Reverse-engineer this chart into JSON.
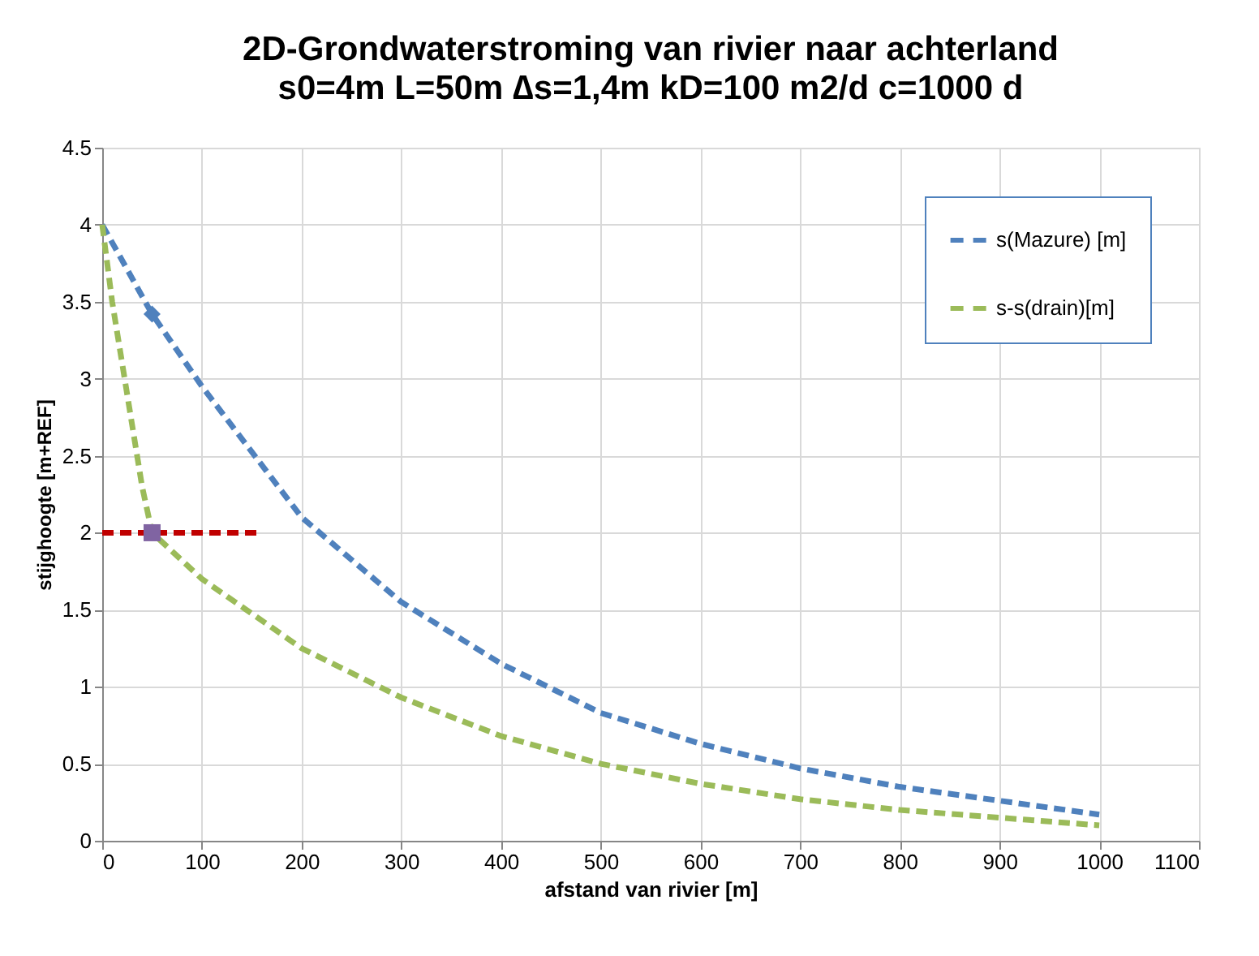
{
  "chart_data": {
    "type": "line",
    "title": "2D-Grondwaterstroming van rivier naar achterland",
    "subtitle": "s0=4m L=50m ∆s=1,4m kD=100 m2/d c=1000 d",
    "xlabel": "afstand van rivier [m]",
    "ylabel": "stijghoogte [m+REF]",
    "xlim": [
      0,
      1100
    ],
    "xticks": [
      0,
      100,
      200,
      300,
      400,
      500,
      600,
      700,
      800,
      900,
      1000,
      1100
    ],
    "ylim": [
      0,
      4.5
    ],
    "yticks": [
      0,
      0.5,
      1,
      1.5,
      2,
      2.5,
      3,
      3.5,
      4,
      4.5
    ],
    "grid": true,
    "legend": "top right",
    "series": [
      {
        "name": "s(Mazure) [m]",
        "color": "#4f81bd",
        "line_style": "dashed",
        "x": [
          0,
          50,
          100,
          200,
          300,
          400,
          500,
          600,
          700,
          800,
          900,
          1000
        ],
        "values": [
          4,
          3.42,
          2.95,
          2.1,
          1.55,
          1.15,
          0.83,
          0.63,
          0.47,
          0.35,
          0.26,
          0.17
        ]
      },
      {
        "name": "s-s(drain)[m]",
        "color": "#9bbb59",
        "line_style": "dashed",
        "x": [
          0,
          10,
          25,
          40,
          50,
          100,
          200,
          300,
          400,
          500,
          600,
          700,
          800,
          900,
          1000
        ],
        "values": [
          4,
          3.5,
          2.9,
          2.3,
          2.0,
          1.7,
          1.25,
          0.93,
          0.68,
          0.5,
          0.37,
          0.27,
          0.2,
          0.15,
          0.1
        ]
      },
      {
        "color": "#c00000",
        "line_style": "dashed",
        "x": [
          0,
          160
        ],
        "values": [
          2,
          2
        ]
      },
      {
        "color": "#4f81bd",
        "type": "scatter",
        "marker": "diamond",
        "x": [
          50
        ],
        "values": [
          3.42
        ]
      },
      {
        "color": "#8064a2",
        "type": "scatter",
        "marker": "square",
        "x": [
          50
        ],
        "values": [
          2
        ]
      }
    ]
  }
}
